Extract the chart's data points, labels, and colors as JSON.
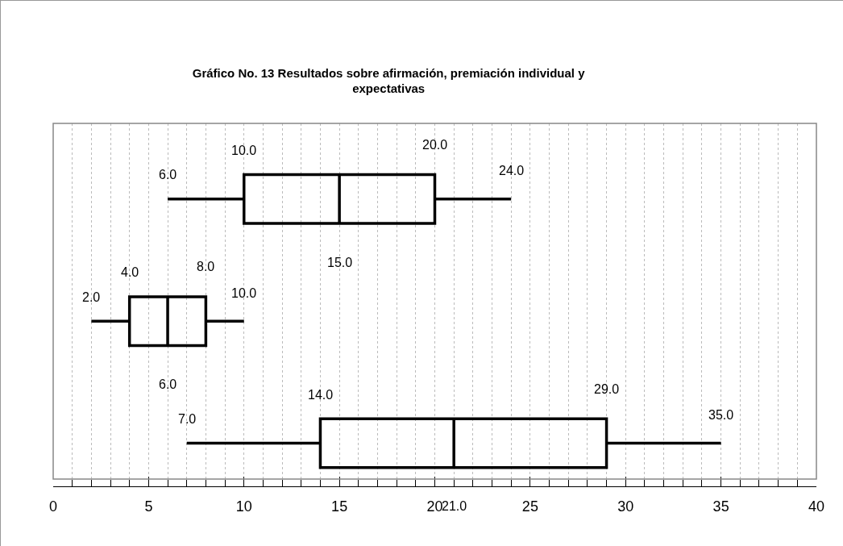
{
  "chart_data": {
    "type": "box",
    "title": "Gráfico No. 13 Resultados sobre afirmación, premiación individual y expectativas",
    "orientation": "horizontal",
    "categories": [
      null,
      null,
      null
    ],
    "boxes": [
      {
        "low": 6,
        "q1": 10,
        "median": 15,
        "q3": 20,
        "high": 24
      },
      {
        "low": 2,
        "q1": 4,
        "median": 6,
        "q3": 8,
        "high": 10
      },
      {
        "low": 7,
        "q1": 14,
        "median": 21,
        "q3": 29,
        "high": 35
      }
    ],
    "value_labels": [
      [
        "6.0",
        "10.0",
        "15.0",
        "20.0",
        "24.0"
      ],
      [
        "2.0",
        "4.0",
        "6.0",
        "8.0",
        "10.0"
      ],
      [
        "7.0",
        "14.0",
        "21.0",
        "29.0",
        "35.0"
      ]
    ],
    "color": "#000000",
    "xlim": [
      0,
      40
    ],
    "xticks": [
      0,
      5,
      10,
      15,
      20,
      25,
      30,
      35,
      40
    ],
    "grid": "x",
    "tick_labels": "x"
  }
}
